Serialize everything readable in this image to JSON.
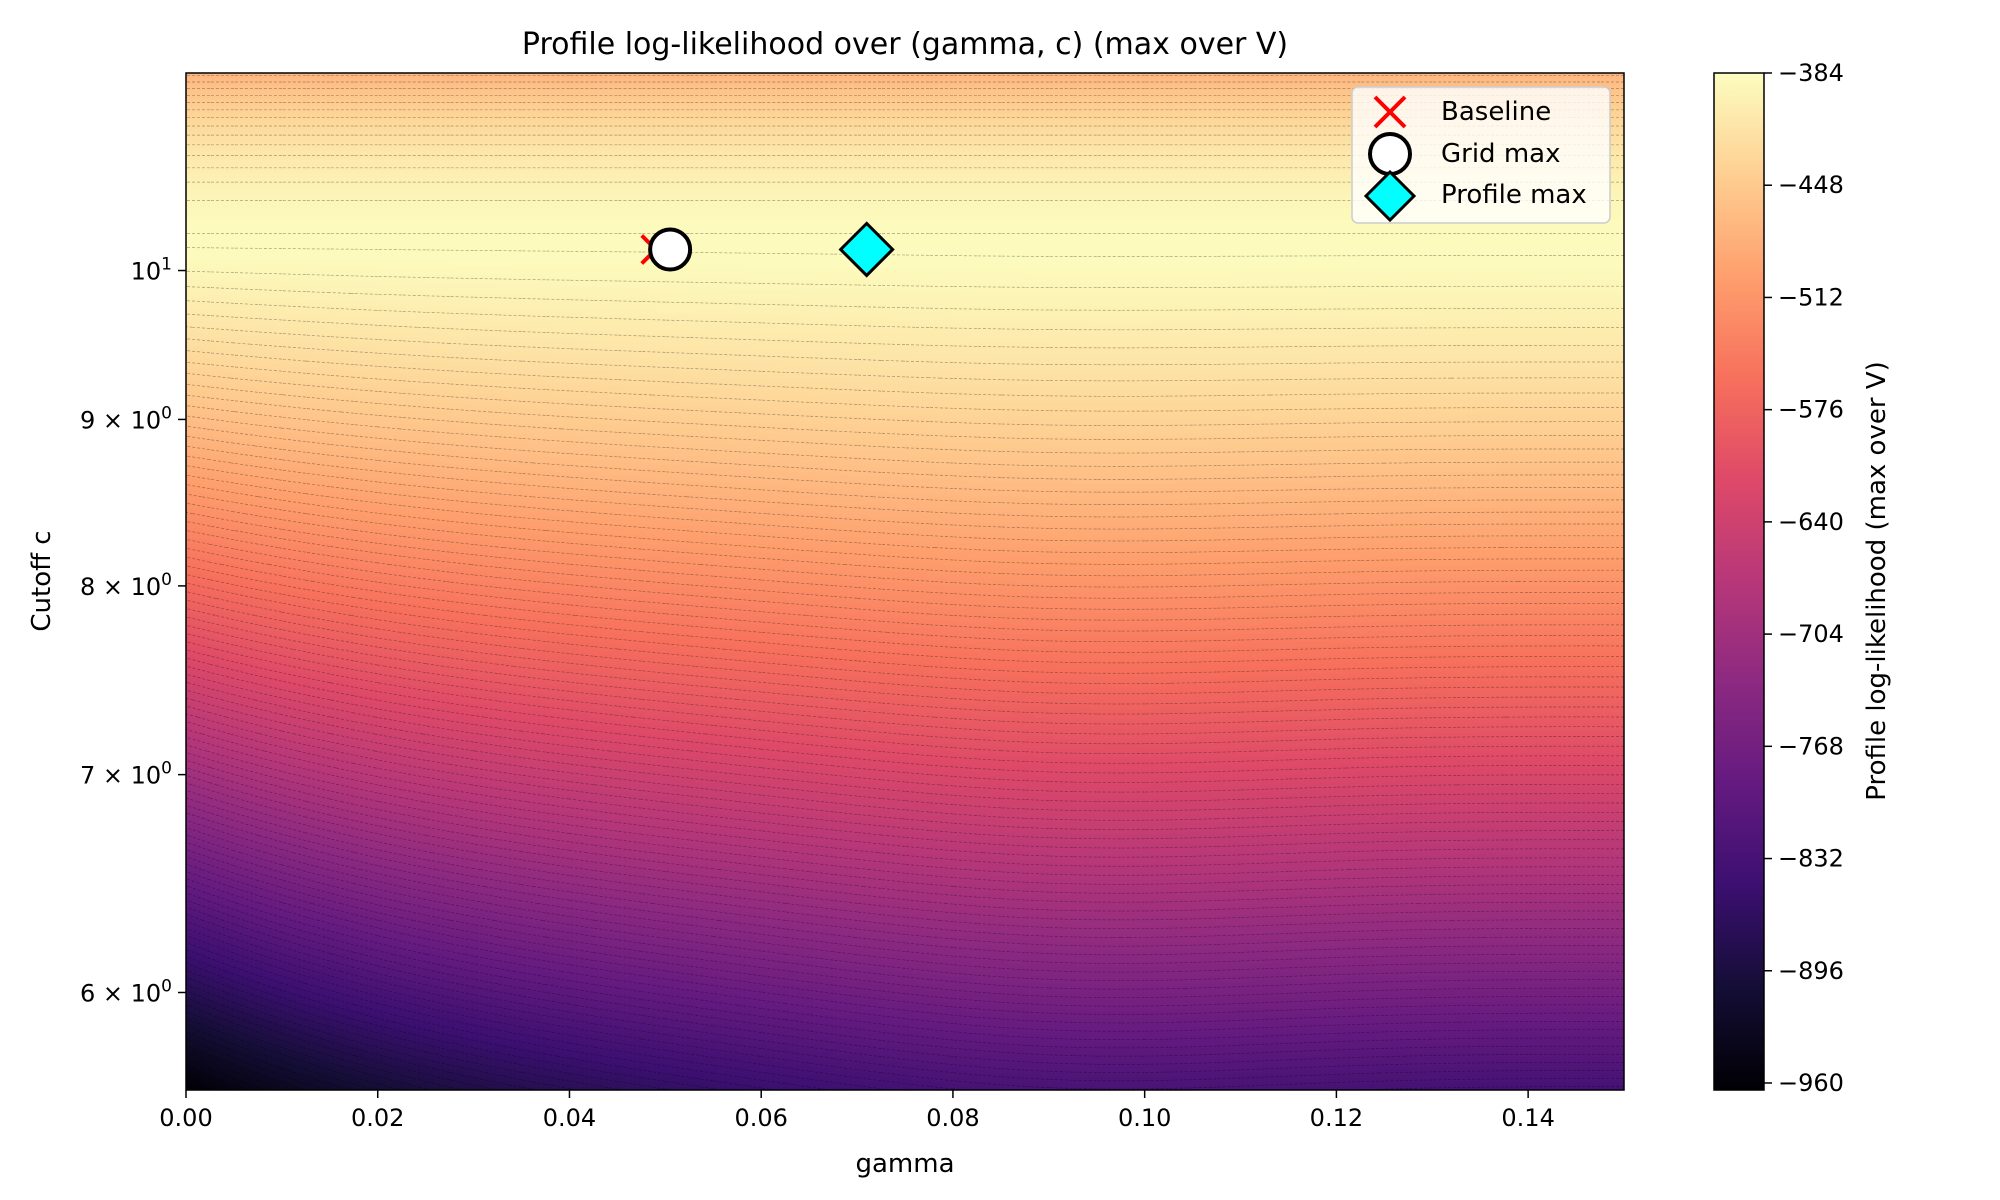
{
  "chart_data": {
    "type": "heatmap",
    "title": "Profile log-likelihood over (gamma, c) (max over V)",
    "xlabel": "gamma",
    "ylabel": "Cutoff c",
    "xlim": [
      0.0,
      0.15
    ],
    "ylim": [
      5.6,
      11.5
    ],
    "yscale": "log",
    "x_ticks": [
      {
        "value": 0.0,
        "label": "0.00"
      },
      {
        "value": 0.02,
        "label": "0.02"
      },
      {
        "value": 0.04,
        "label": "0.04"
      },
      {
        "value": 0.06,
        "label": "0.06"
      },
      {
        "value": 0.08,
        "label": "0.08"
      },
      {
        "value": 0.1,
        "label": "0.10"
      },
      {
        "value": 0.12,
        "label": "0.12"
      },
      {
        "value": 0.14,
        "label": "0.14"
      }
    ],
    "y_ticks": [
      {
        "value": 6,
        "mant": "6",
        "base": "10",
        "exp": "0"
      },
      {
        "value": 7,
        "mant": "7",
        "base": "10",
        "exp": "0"
      },
      {
        "value": 8,
        "mant": "8",
        "base": "10",
        "exp": "0"
      },
      {
        "value": 9,
        "mant": "9",
        "base": "10",
        "exp": "0"
      },
      {
        "value": 10,
        "mant": "",
        "base": "10",
        "exp": "1"
      }
    ],
    "colorbar": {
      "label": "Profile log-likelihood (max over V)",
      "colormap": "magma",
      "range": [
        -964,
        -384
      ],
      "ticks": [
        {
          "value": -384,
          "label": "−384"
        },
        {
          "value": -448,
          "label": "−448"
        },
        {
          "value": -512,
          "label": "−512"
        },
        {
          "value": -576,
          "label": "−576"
        },
        {
          "value": -640,
          "label": "−640"
        },
        {
          "value": -704,
          "label": "−704"
        },
        {
          "value": -768,
          "label": "−768"
        },
        {
          "value": -832,
          "label": "−832"
        },
        {
          "value": -896,
          "label": "−896"
        },
        {
          "value": -960,
          "label": "−960"
        }
      ]
    },
    "markers": [
      {
        "name": "Baseline",
        "gamma": 0.049,
        "c": 10.15,
        "symbol": "x",
        "color": "#ff0000"
      },
      {
        "name": "Grid max",
        "gamma": 0.0505,
        "c": 10.15,
        "symbol": "circle",
        "color": "#ffffff"
      },
      {
        "name": "Profile max",
        "gamma": 0.071,
        "c": 10.15,
        "symbol": "diamond",
        "color": "#00ffff"
      }
    ],
    "legend": {
      "position": "top-right"
    },
    "contour_lines": true
  }
}
